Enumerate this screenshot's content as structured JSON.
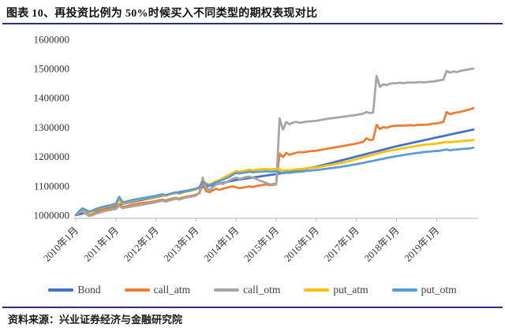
{
  "title": "图表 10、再投资比例为 50%时候买入不同类型的期权表现对比",
  "source": "资料来源：兴业证券经济与金融研究院",
  "colors": {
    "rule_navy": "#2d2e83",
    "axis_gray": "#bfbfbf",
    "tick_text": "#333333"
  },
  "chart_data": {
    "type": "line",
    "title": "",
    "xlabel": "",
    "ylabel": "",
    "grid": false,
    "legend_position": "bottom",
    "ylim": [
      1000000,
      1600000
    ],
    "y_ticks": [
      1000000,
      1100000,
      1200000,
      1300000,
      1400000,
      1500000,
      1600000
    ],
    "x_unit": "month",
    "x_start": "2010-01",
    "x_end": "2019-12",
    "x_tick_labels": [
      "2010年1月",
      "2011年1月",
      "2012年1月",
      "2013年1月",
      "2014年1月",
      "2015年1月",
      "2016年1月",
      "2017年1月",
      "2018年1月",
      "2019年1月"
    ],
    "x_tick_month_indices": [
      0,
      12,
      24,
      36,
      48,
      60,
      72,
      84,
      96,
      108
    ],
    "series": [
      {
        "name": "Bond",
        "color": "#4472C4",
        "values": [
          1000000,
          1002800,
          1005700,
          1008500,
          1011300,
          1014200,
          1017000,
          1019800,
          1022700,
          1025500,
          1028300,
          1031200,
          1034000,
          1036300,
          1038700,
          1041000,
          1043300,
          1045700,
          1048000,
          1050300,
          1052700,
          1055000,
          1057300,
          1059700,
          1062000,
          1064300,
          1066700,
          1069000,
          1071300,
          1073700,
          1076000,
          1078300,
          1080700,
          1083000,
          1085300,
          1087700,
          1090000,
          1092500,
          1095000,
          1097500,
          1100000,
          1102500,
          1105000,
          1107500,
          1110000,
          1112500,
          1115000,
          1117500,
          1120000,
          1121700,
          1123300,
          1125000,
          1126700,
          1128300,
          1130000,
          1131700,
          1133300,
          1135000,
          1136700,
          1138300,
          1140000,
          1142100,
          1144200,
          1146300,
          1148300,
          1150400,
          1152500,
          1154600,
          1156700,
          1158800,
          1160800,
          1162900,
          1165000,
          1167900,
          1170800,
          1173800,
          1176700,
          1179600,
          1182500,
          1185400,
          1188300,
          1191300,
          1194200,
          1197100,
          1200000,
          1202900,
          1205800,
          1208800,
          1211700,
          1214600,
          1217500,
          1220400,
          1223300,
          1226300,
          1229200,
          1232100,
          1235000,
          1237500,
          1240000,
          1242500,
          1245000,
          1247500,
          1250000,
          1252500,
          1255000,
          1257500,
          1260000,
          1262500,
          1265000,
          1267500,
          1270000,
          1272400,
          1274900,
          1277300,
          1279800,
          1282200,
          1284700,
          1287100,
          1289600,
          1292000
        ]
      },
      {
        "name": "call_atm",
        "color": "#ED7D31",
        "values": [
          1000000,
          1010000,
          1016000,
          1008000,
          1000000,
          1004000,
          1010000,
          1014000,
          1018000,
          1020000,
          1022000,
          1024000,
          1026000,
          1036000,
          1028000,
          1030000,
          1033000,
          1036000,
          1038000,
          1040000,
          1042000,
          1043000,
          1044000,
          1046000,
          1048000,
          1051000,
          1053000,
          1050000,
          1054000,
          1057000,
          1059000,
          1056000,
          1060000,
          1063000,
          1065000,
          1067000,
          1070000,
          1075000,
          1108000,
          1082000,
          1078000,
          1085000,
          1090000,
          1086000,
          1090000,
          1093000,
          1096000,
          1098000,
          1095000,
          1092000,
          1094000,
          1096000,
          1098000,
          1096000,
          1099000,
          1101000,
          1103000,
          1105000,
          1102000,
          1106000,
          1108000,
          1210000,
          1198000,
          1212000,
          1206000,
          1210000,
          1213000,
          1215000,
          1214000,
          1216000,
          1218000,
          1219000,
          1220000,
          1222000,
          1224000,
          1226000,
          1228000,
          1230000,
          1232000,
          1234000,
          1236000,
          1238000,
          1240000,
          1242000,
          1244000,
          1247000,
          1250000,
          1262000,
          1256000,
          1258000,
          1308000,
          1294000,
          1300000,
          1298000,
          1302000,
          1304000,
          1305000,
          1306000,
          1305000,
          1306000,
          1307000,
          1306000,
          1307000,
          1308000,
          1308000,
          1309000,
          1310000,
          1312000,
          1313000,
          1315000,
          1318000,
          1352000,
          1344000,
          1348000,
          1350000,
          1352000,
          1355000,
          1358000,
          1361000,
          1365000
        ]
      },
      {
        "name": "call_otm",
        "color": "#A5A5A5",
        "values": [
          1000000,
          1008000,
          1014000,
          1005000,
          997000,
          1000000,
          1005000,
          1008000,
          1012000,
          1015000,
          1017000,
          1019000,
          1021000,
          1032000,
          1024000,
          1026000,
          1028000,
          1030000,
          1032000,
          1034000,
          1036000,
          1038000,
          1040000,
          1042000,
          1044000,
          1047000,
          1049000,
          1046000,
          1050000,
          1053000,
          1056000,
          1053000,
          1057000,
          1060000,
          1062000,
          1064000,
          1067000,
          1078000,
          1128000,
          1092000,
          1086000,
          1095000,
          1104000,
          1110000,
          1106000,
          1112000,
          1118000,
          1124000,
          1128000,
          1124000,
          1127000,
          1130000,
          1132000,
          1128000,
          1124000,
          1118000,
          1114000,
          1110000,
          1106000,
          1102000,
          1105000,
          1330000,
          1292000,
          1318000,
          1310000,
          1316000,
          1318000,
          1315000,
          1317000,
          1319000,
          1320000,
          1321000,
          1322000,
          1324000,
          1326000,
          1328000,
          1330000,
          1331000,
          1333000,
          1334000,
          1336000,
          1337000,
          1339000,
          1340000,
          1342000,
          1344000,
          1346000,
          1352000,
          1348000,
          1350000,
          1475000,
          1438000,
          1446000,
          1444000,
          1448000,
          1450000,
          1450000,
          1452000,
          1450000,
          1452000,
          1453000,
          1452000,
          1453000,
          1454000,
          1453000,
          1454000,
          1455000,
          1456000,
          1458000,
          1460000,
          1462000,
          1492000,
          1486000,
          1490000,
          1488000,
          1492000,
          1494000,
          1496000,
          1498000,
          1500000
        ]
      },
      {
        "name": "put_atm",
        "color": "#FFC000",
        "values": [
          1000000,
          1012000,
          1021000,
          1016000,
          1010000,
          1014000,
          1019000,
          1023000,
          1026000,
          1029000,
          1031000,
          1034000,
          1037000,
          1049000,
          1040000,
          1043000,
          1046000,
          1049000,
          1051000,
          1054000,
          1056000,
          1058000,
          1060000,
          1062000,
          1064000,
          1067000,
          1069000,
          1066000,
          1070000,
          1073000,
          1076000,
          1073000,
          1077000,
          1080000,
          1082000,
          1085000,
          1088000,
          1095000,
          1118000,
          1108000,
          1104000,
          1110000,
          1116000,
          1120000,
          1126000,
          1132000,
          1138000,
          1144000,
          1150000,
          1148000,
          1151000,
          1153000,
          1155000,
          1153000,
          1155000,
          1156000,
          1157000,
          1158000,
          1156000,
          1157000,
          1158000,
          1156000,
          1152000,
          1154000,
          1153000,
          1155000,
          1156000,
          1157000,
          1158000,
          1160000,
          1161000,
          1162000,
          1163000,
          1165000,
          1167000,
          1169000,
          1171000,
          1173000,
          1175000,
          1177000,
          1179000,
          1182000,
          1185000,
          1188000,
          1191000,
          1194000,
          1197000,
          1200000,
          1203000,
          1206000,
          1209000,
          1212000,
          1215000,
          1218000,
          1220000,
          1222000,
          1224000,
          1226000,
          1228000,
          1230000,
          1232000,
          1234000,
          1236000,
          1238000,
          1240000,
          1241000,
          1242000,
          1243000,
          1244000,
          1246000,
          1248000,
          1250000,
          1248000,
          1250000,
          1251000,
          1252000,
          1253000,
          1254000,
          1255000,
          1256000
        ]
      },
      {
        "name": "put_otm",
        "color": "#5B9BD5",
        "values": [
          1000000,
          1013000,
          1023000,
          1018000,
          1012000,
          1016000,
          1021000,
          1025000,
          1028000,
          1031000,
          1033000,
          1036000,
          1039000,
          1062000,
          1044000,
          1046000,
          1049000,
          1052000,
          1054000,
          1056000,
          1058000,
          1060000,
          1062000,
          1064000,
          1066000,
          1069000,
          1071000,
          1068000,
          1072000,
          1075000,
          1078000,
          1075000,
          1079000,
          1082000,
          1084000,
          1087000,
          1090000,
          1096000,
          1115000,
          1105000,
          1101000,
          1107000,
          1112000,
          1116000,
          1121000,
          1126000,
          1131000,
          1138000,
          1144000,
          1142000,
          1144000,
          1146000,
          1148000,
          1146000,
          1147000,
          1148000,
          1149000,
          1150000,
          1148000,
          1149000,
          1150000,
          1147000,
          1143000,
          1145000,
          1144000,
          1146000,
          1147000,
          1148000,
          1149000,
          1151000,
          1152000,
          1153000,
          1154000,
          1155000,
          1157000,
          1158000,
          1160000,
          1161000,
          1163000,
          1164000,
          1166000,
          1168000,
          1170000,
          1172000,
          1174000,
          1176000,
          1178000,
          1181000,
          1183000,
          1185000,
          1188000,
          1190000,
          1192000,
          1195000,
          1197000,
          1199000,
          1201000,
          1203000,
          1205000,
          1207000,
          1209000,
          1210000,
          1212000,
          1213000,
          1215000,
          1216000,
          1217000,
          1218000,
          1219000,
          1220000,
          1222000,
          1224000,
          1221000,
          1223000,
          1224000,
          1225000,
          1226000,
          1227000,
          1228000,
          1230000
        ]
      }
    ]
  }
}
